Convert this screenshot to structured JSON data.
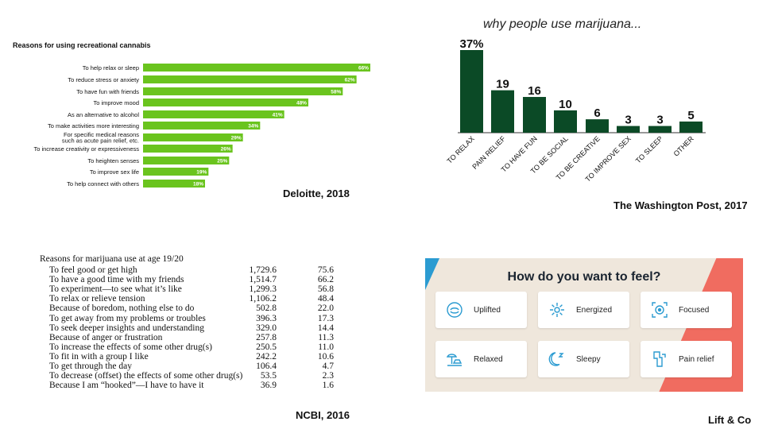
{
  "deloitte": {
    "title": "Reasons for using recreational cannabis",
    "source": "Deloitte, 2018",
    "bar_color": "#6ac41e"
  },
  "wapo": {
    "subtitle": "why people use marijuana...",
    "source": "The Washington Post, 2017",
    "bar_color": "#0b4a26"
  },
  "ncbi": {
    "title": "Reasons for marijuana use at age 19/20",
    "source": "NCBI, 2016"
  },
  "lift": {
    "heading": "How do you want to feel?",
    "source": "Lift & Co",
    "accent_color": "#2b9bd1",
    "cards": [
      {
        "label": "Uplifted",
        "icon": "uplifted-icon"
      },
      {
        "label": "Energized",
        "icon": "energized-icon"
      },
      {
        "label": "Focused",
        "icon": "focused-icon"
      },
      {
        "label": "Relaxed",
        "icon": "relaxed-icon"
      },
      {
        "label": "Sleepy",
        "icon": "sleepy-icon"
      },
      {
        "label": "Pain relief",
        "icon": "pain-relief-icon"
      }
    ]
  },
  "chart_data": [
    {
      "type": "bar",
      "orientation": "horizontal",
      "title": "Reasons for using recreational cannabis",
      "categories": [
        "To help relax or sleep",
        "To reduce stress or anxiety",
        "To have fun with friends",
        "To improve mood",
        "As an alternative to alcohol",
        "To make activities more interesting",
        "For specific medical reasons such as acute pain relief, etc.",
        "To increase creativity or expressiveness",
        "To heighten senses",
        "To improve sex life",
        "To help connect with others"
      ],
      "label_lines": [
        [
          "To help relax or sleep"
        ],
        [
          "To reduce stress or anxiety"
        ],
        [
          "To have fun with friends"
        ],
        [
          "To improve mood"
        ],
        [
          "As an alternative to alcohol"
        ],
        [
          "To make activities more interesting"
        ],
        [
          "For specific medical reasons",
          "such as acute pain relief, etc."
        ],
        [
          "To increase creativity or expressiveness"
        ],
        [
          "To heighten senses"
        ],
        [
          "To improve sex life"
        ],
        [
          "To help connect with others"
        ]
      ],
      "values": [
        66,
        62,
        58,
        48,
        41,
        34,
        29,
        26,
        25,
        19,
        18
      ],
      "data_labels": [
        "66%",
        "62%",
        "58%",
        "48%",
        "41%",
        "34%",
        "29%",
        "26%",
        "25%",
        "19%",
        "18%"
      ],
      "xlim": [
        0,
        100
      ]
    },
    {
      "type": "bar",
      "orientation": "vertical",
      "title": "why people use marijuana...",
      "categories": [
        "TO RELAX",
        "PAIN RELIEF",
        "TO HAVE FUN",
        "TO BE SOCIAL",
        "TO BE CREATIVE",
        "TO IMPROVE SEX",
        "TO SLEEP",
        "OTHER"
      ],
      "values": [
        37,
        19,
        16,
        10,
        6,
        3,
        3,
        5
      ],
      "data_labels": [
        "37%",
        "19",
        "16",
        "10",
        "6",
        "3",
        "3",
        "5"
      ],
      "ylim": [
        0,
        37
      ]
    },
    {
      "type": "table",
      "title": "Reasons for marijuana use at age 19/20",
      "rows": [
        [
          "To feel good or get high",
          "1,729.6",
          "75.6"
        ],
        [
          "To have a good time with my friends",
          "1,514.7",
          "66.2"
        ],
        [
          "To experiment—to see what it’s like",
          "1,299.3",
          "56.8"
        ],
        [
          "To relax or relieve tension",
          "1,106.2",
          "48.4"
        ],
        [
          "Because of boredom, nothing else to do",
          "502.8",
          "22.0"
        ],
        [
          "To get away from my problems or troubles",
          "396.3",
          "17.3"
        ],
        [
          "To seek deeper insights and understanding",
          "329.0",
          "14.4"
        ],
        [
          "Because of anger or frustration",
          "257.8",
          "11.3"
        ],
        [
          "To increase the effects of some other drug(s)",
          "250.5",
          "11.0"
        ],
        [
          "To fit in with a group I like",
          "242.2",
          "10.6"
        ],
        [
          "To get through the day",
          "106.4",
          "4.7"
        ],
        [
          "To decrease (offset) the effects of some other drug(s)",
          "53.5",
          "2.3"
        ],
        [
          "Because I am “hooked”—I have to have it",
          "36.9",
          "1.6"
        ]
      ]
    }
  ]
}
